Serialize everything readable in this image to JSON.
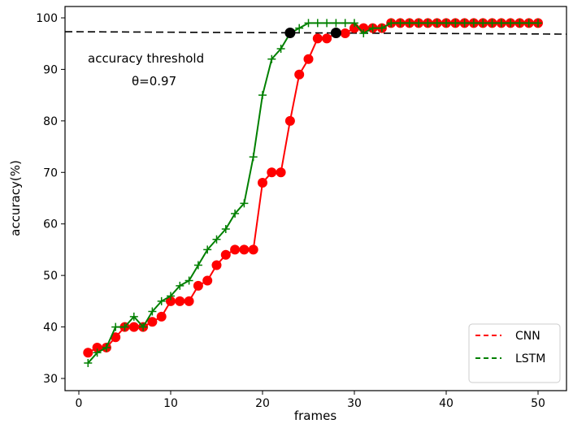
{
  "chart_data": {
    "type": "line",
    "title": "",
    "xlabel": "frames",
    "ylabel": "accuracy(%)",
    "xlim": [
      -1.5,
      53
    ],
    "ylim": [
      29.5,
      102
    ],
    "xticks": [
      0,
      10,
      20,
      30,
      40,
      50
    ],
    "yticks": [
      30,
      40,
      50,
      60,
      70,
      80,
      90,
      100
    ],
    "x": [
      1,
      2,
      3,
      4,
      5,
      6,
      7,
      8,
      9,
      10,
      11,
      12,
      13,
      14,
      15,
      16,
      17,
      18,
      19,
      20,
      21,
      22,
      23,
      24,
      25,
      26,
      27,
      28,
      29,
      30,
      31,
      32,
      33,
      34,
      35,
      36,
      37,
      38,
      39,
      40,
      41,
      42,
      43,
      44,
      45,
      46,
      47,
      48,
      49,
      50
    ],
    "series": [
      {
        "name": "CNN",
        "color": "#ff0000",
        "marker": "circle",
        "values": [
          35,
          36,
          36,
          38,
          40,
          40,
          40,
          41,
          42,
          45,
          45,
          45,
          48,
          49,
          52,
          54,
          55,
          55,
          55,
          68,
          70,
          70,
          80,
          89,
          92,
          96,
          96,
          97,
          97,
          98,
          98,
          98,
          98,
          99,
          99,
          99,
          99,
          99,
          99,
          99,
          99,
          99,
          99,
          99,
          99,
          99,
          99,
          99,
          99,
          99
        ]
      },
      {
        "name": "LSTM",
        "color": "#008000",
        "marker": "plus",
        "values": [
          33,
          35,
          36,
          40,
          40,
          42,
          40,
          43,
          45,
          46,
          48,
          49,
          52,
          55,
          57,
          59,
          62,
          64,
          73,
          85,
          92,
          94,
          97,
          98,
          99,
          99,
          99,
          99,
          99,
          99,
          97,
          98,
          98,
          99,
          99,
          99,
          99,
          99,
          99,
          99,
          99,
          99,
          99,
          99,
          99,
          99,
          99,
          99,
          99,
          99
        ]
      }
    ],
    "threshold": {
      "value": 97,
      "label": "accuracy threshold",
      "sublabel": "θ=0.97",
      "color": "#000000"
    },
    "crossings": [
      {
        "x": 23,
        "y": 97
      },
      {
        "x": 28,
        "y": 97
      }
    ],
    "legend": {
      "placement": "bottom-right",
      "entries": [
        "CNN",
        "LSTM"
      ]
    },
    "grid": false
  }
}
